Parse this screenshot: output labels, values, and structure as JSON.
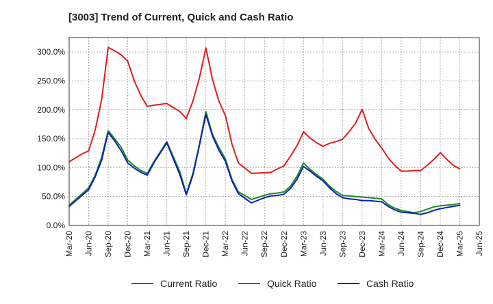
{
  "chart_data": {
    "type": "line",
    "title": "[3003]  Trend of Current, Quick and Cash Ratio",
    "xlabel": "",
    "ylabel": "",
    "ylim": [
      0,
      325
    ],
    "yticks": [
      0,
      50,
      100,
      150,
      200,
      250,
      300
    ],
    "ytick_labels": [
      "0.0%",
      "50.0%",
      "100.0%",
      "150.0%",
      "200.0%",
      "250.0%",
      "300.0%"
    ],
    "xtick_labels": [
      "Mar-20",
      "Jun-20",
      "Sep-20",
      "Dec-20",
      "Mar-21",
      "Jun-21",
      "Sep-21",
      "Dec-21",
      "Mar-22",
      "Jun-22",
      "Sep-22",
      "Dec-22",
      "Mar-23",
      "Jun-23",
      "Sep-23",
      "Dec-23",
      "Mar-24",
      "Jun-24",
      "Sep-24",
      "Dec-24",
      "Mar-25",
      "Jun-25"
    ],
    "x_start": "Mar-20",
    "months_total": 63,
    "grid": true,
    "legend_position": "bottom",
    "series": [
      {
        "name": "Current Ratio",
        "color": "#e31a1c",
        "x": [
          0,
          2,
          3,
          4,
          5,
          6,
          7,
          8,
          9,
          10,
          11,
          12,
          13,
          15,
          17,
          18,
          19,
          20,
          21,
          22,
          23,
          24,
          25,
          26,
          28,
          30,
          31,
          32,
          33,
          34,
          35,
          36,
          37,
          38,
          39,
          40,
          41,
          42,
          43,
          44,
          45,
          46,
          47,
          48,
          49,
          50,
          51,
          52,
          53,
          54,
          55,
          56,
          57,
          58,
          59,
          60
        ],
        "values": [
          110,
          124,
          129,
          165,
          218,
          308,
          302,
          295,
          284,
          250,
          225,
          206,
          208,
          211,
          197,
          185,
          215,
          255,
          307,
          253,
          215,
          190,
          141,
          108,
          90,
          91,
          92,
          98,
          103,
          120,
          138,
          162,
          151,
          143,
          137,
          142,
          145,
          149,
          162,
          177,
          201,
          168,
          149,
          134,
          117,
          104,
          94,
          94,
          95,
          95,
          104,
          114,
          126,
          114,
          104,
          98
        ]
      },
      {
        "name": "Quick Ratio",
        "color": "#1a8a1a",
        "x": [
          0,
          2,
          3,
          4,
          5,
          6,
          7,
          8,
          9,
          10,
          11,
          12,
          13,
          15,
          17,
          18,
          19,
          20,
          21,
          22,
          23,
          24,
          25,
          26,
          28,
          30,
          31,
          32,
          33,
          34,
          35,
          36,
          37,
          38,
          39,
          40,
          41,
          42,
          43,
          44,
          45,
          46,
          47,
          48,
          49,
          50,
          51,
          52,
          53,
          54,
          55,
          56,
          57,
          58,
          59,
          60
        ],
        "values": [
          35,
          55,
          65,
          87,
          118,
          164,
          150,
          135,
          113,
          103,
          95,
          90,
          110,
          145,
          93,
          55,
          90,
          140,
          197,
          158,
          135,
          115,
          80,
          58,
          45,
          52,
          55,
          56,
          58,
          68,
          85,
          108,
          97,
          88,
          80,
          68,
          59,
          52,
          51,
          50,
          49,
          48,
          47,
          46,
          36,
          30,
          26,
          24,
          22,
          24,
          28,
          32,
          34,
          35,
          36,
          38
        ]
      },
      {
        "name": "Cash Ratio",
        "color": "#0b1fbf",
        "x": [
          0,
          2,
          3,
          4,
          5,
          6,
          7,
          8,
          9,
          10,
          11,
          12,
          13,
          15,
          17,
          18,
          19,
          20,
          21,
          22,
          23,
          24,
          25,
          26,
          28,
          30,
          31,
          32,
          33,
          34,
          35,
          36,
          37,
          38,
          39,
          40,
          41,
          42,
          43,
          44,
          45,
          46,
          47,
          48,
          49,
          50,
          51,
          52,
          53,
          54,
          55,
          56,
          57,
          58,
          59,
          60
        ],
        "values": [
          33,
          52,
          62,
          84,
          113,
          161,
          146,
          129,
          108,
          99,
          92,
          87,
          108,
          143,
          88,
          53,
          87,
          138,
          192,
          155,
          130,
          111,
          77,
          55,
          39,
          48,
          51,
          52,
          54,
          64,
          80,
          102,
          94,
          85,
          77,
          65,
          55,
          48,
          46,
          45,
          43,
          43,
          42,
          41,
          33,
          27,
          23,
          22,
          21,
          19,
          22,
          26,
          29,
          31,
          33,
          35
        ]
      }
    ]
  }
}
